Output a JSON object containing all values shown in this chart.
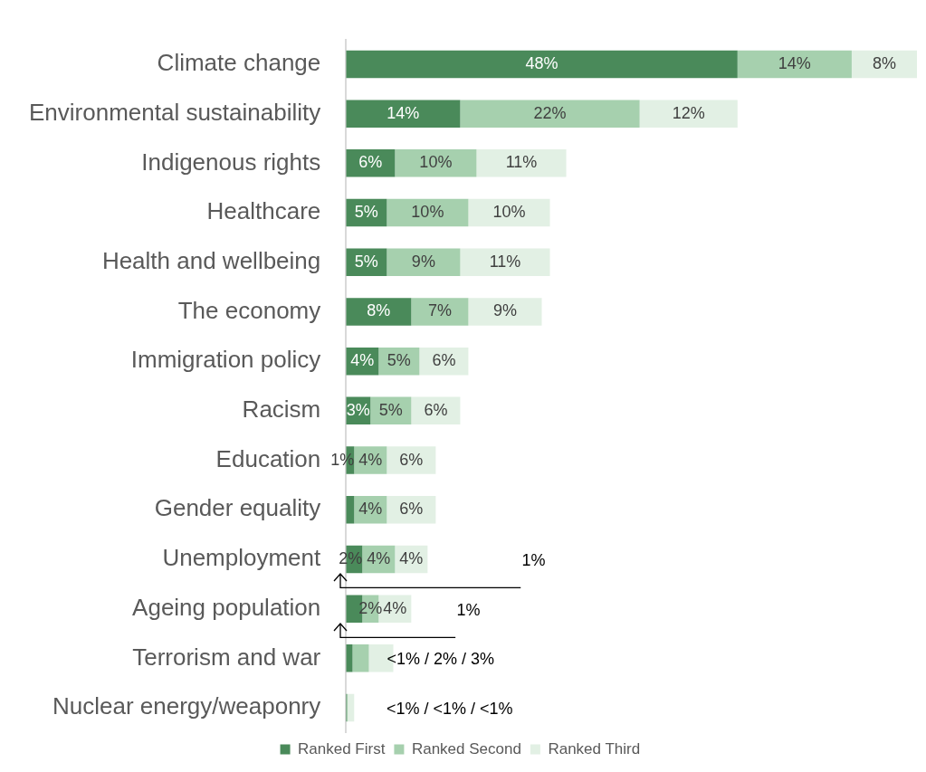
{
  "chart_data": {
    "type": "bar",
    "orientation": "horizontal",
    "stacked": true,
    "categories": [
      "Climate change",
      "Environmental sustainability",
      "Indigenous rights",
      "Healthcare",
      "Health and wellbeing",
      "The economy",
      "Immigration policy",
      "Racism",
      "Education",
      "Gender equality",
      "Unemployment",
      "Ageing population",
      "Terrorism and war",
      "Nuclear energy/weaponry"
    ],
    "series": [
      {
        "name": "Ranked First",
        "color": "#4a8a5a",
        "values": [
          48,
          14,
          6,
          5,
          5,
          8,
          4,
          3,
          1,
          1,
          2,
          2,
          0.8,
          0.1
        ],
        "value_labels": [
          "48%",
          "14%",
          "6%",
          "5%",
          "5%",
          "8%",
          "4%",
          "3%",
          "1%",
          null,
          "2%",
          null,
          null,
          null
        ]
      },
      {
        "name": "Ranked Second",
        "color": "#a6d0ae",
        "values": [
          14,
          22,
          10,
          10,
          9,
          7,
          5,
          5,
          4,
          4,
          4,
          2,
          2,
          0.1
        ],
        "value_labels": [
          "14%",
          "22%",
          "10%",
          "10%",
          "9%",
          "7%",
          "5%",
          "5%",
          "4%",
          "4%",
          "4%",
          "2%",
          null,
          null
        ]
      },
      {
        "name": "Ranked Third",
        "color": "#e2f0e4",
        "values": [
          8,
          12,
          11,
          10,
          11,
          9,
          6,
          6,
          6,
          6,
          4,
          4,
          3,
          0.8
        ],
        "value_labels": [
          "8%",
          "12%",
          "11%",
          "10%",
          "11%",
          "9%",
          "6%",
          "6%",
          "6%",
          "6%",
          "4%",
          "4%",
          null,
          null
        ]
      }
    ],
    "legend": "bottom",
    "annotations": [
      "1%",
      "1%",
      "<1% / 2% / 3%",
      "<1% / <1% / <1%"
    ]
  }
}
